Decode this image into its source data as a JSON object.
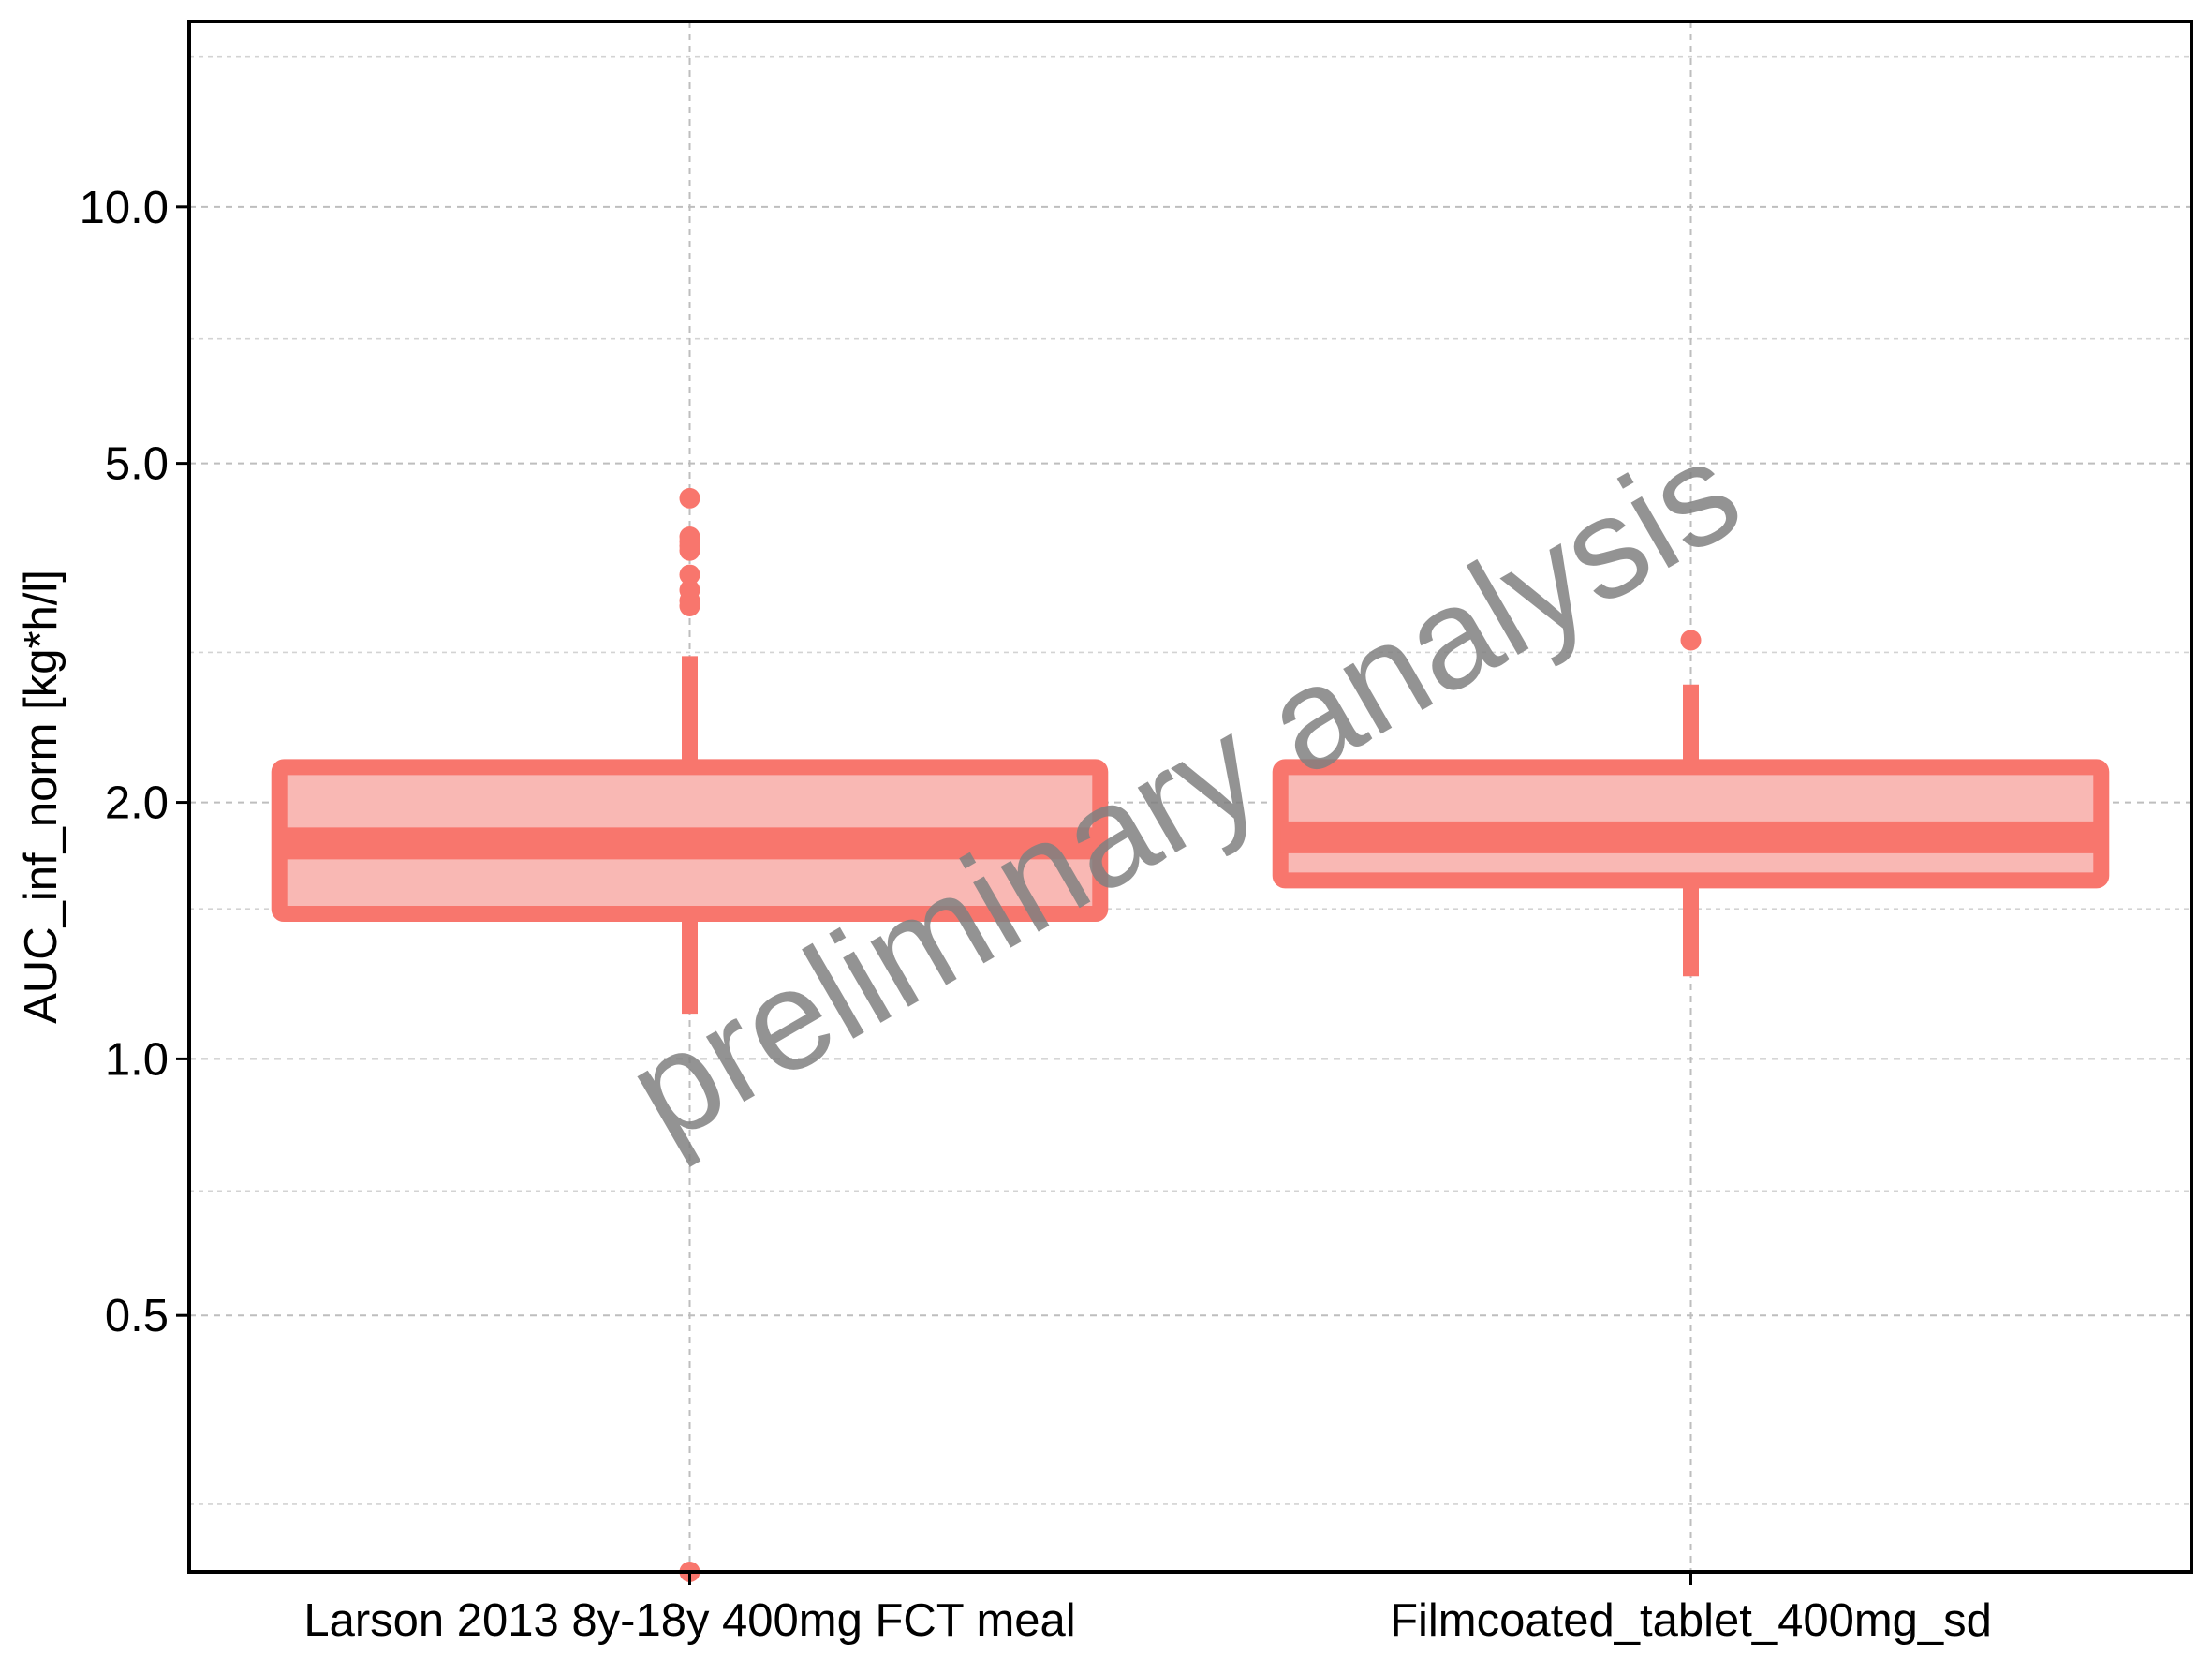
{
  "chart_data": {
    "type": "boxplot",
    "title": "",
    "xlabel": "",
    "ylabel": "AUC_inf_norm [kg*h/l]",
    "y_scale": "log",
    "ylim": [
      0.25,
      16.5
    ],
    "yticks": [
      0.5,
      1.0,
      2.0,
      5.0,
      10.0
    ],
    "ytick_labels": [
      "0.5",
      "1.0",
      "2.0",
      "5.0",
      "10.0"
    ],
    "y_minor_gridlines": [
      0.3,
      0.7,
      1.5,
      3.0,
      7.0,
      15.0
    ],
    "grid": true,
    "grid_style": "dashed",
    "categories": [
      "Larson 2013 8y-18y 400mg FCT meal",
      "Filmcoated_tablet_400mg_sd"
    ],
    "boxes": [
      {
        "whisker_low": 1.13,
        "q1": 1.48,
        "median": 1.79,
        "q3": 2.2,
        "whisker_high": 2.97,
        "outliers": [
          4.55,
          4.1,
          4.05,
          4.0,
          3.95,
          3.7,
          3.55,
          3.45,
          3.4,
          0.25
        ]
      },
      {
        "whisker_low": 1.25,
        "q1": 1.62,
        "median": 1.82,
        "q3": 2.2,
        "whisker_high": 2.75,
        "outliers": [
          3.1
        ]
      }
    ],
    "colors": {
      "box_fill": "#F9B8B4",
      "box_line": "#F8766D",
      "grid": "#BEBEBE",
      "frame": "#000000"
    },
    "watermark": "preliminary analysis"
  }
}
